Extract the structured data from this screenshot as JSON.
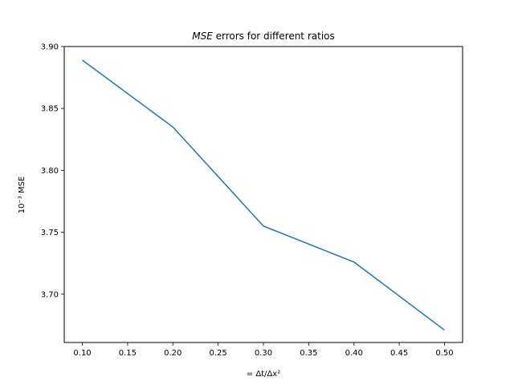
{
  "chart_data": {
    "type": "line",
    "title_italic": "MSE",
    "title_rest": " errors for different ratios",
    "xlabel": "= Δt/Δx²",
    "ylabel": "10⁻³ MSE",
    "x": [
      0.1,
      0.2,
      0.3,
      0.4,
      0.5
    ],
    "series": [
      {
        "values": [
          3.889,
          3.835,
          3.755,
          3.726,
          3.671
        ],
        "color": "#1f77b4"
      }
    ],
    "xlim": [
      0.08,
      0.52
    ],
    "ylim": [
      3.661,
      3.9
    ],
    "xticks": [
      0.1,
      0.15,
      0.2,
      0.25,
      0.3,
      0.35,
      0.4,
      0.45,
      0.5
    ],
    "xtick_labels": [
      "0.10",
      "0.15",
      "0.20",
      "0.25",
      "0.30",
      "0.35",
      "0.40",
      "0.45",
      "0.50"
    ],
    "yticks": [
      3.7,
      3.75,
      3.8,
      3.85,
      3.9
    ],
    "ytick_labels": [
      "3.70",
      "3.75",
      "3.80",
      "3.85",
      "3.90"
    ],
    "grid": false,
    "legend": "none"
  }
}
